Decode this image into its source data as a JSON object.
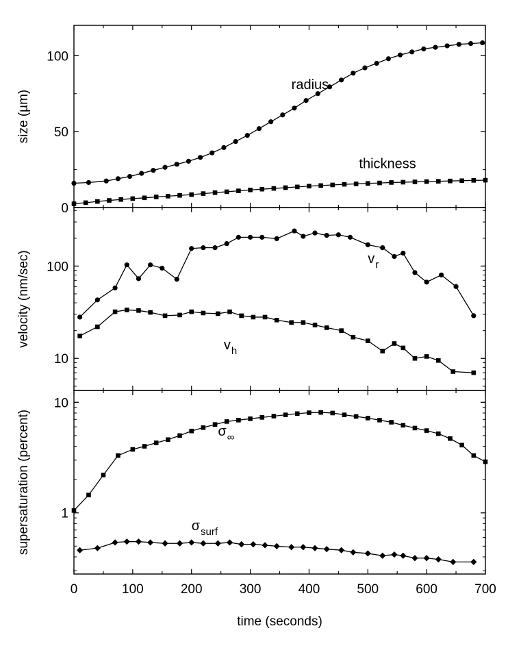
{
  "chart_data": [
    {
      "type": "line",
      "panel": "top",
      "ylabel": "size (µm)",
      "yscale": "linear",
      "ylim": [
        0,
        120
      ],
      "yticks": [
        0,
        50,
        100
      ],
      "ytick_labels": [
        "0",
        "50",
        "100"
      ],
      "series": [
        {
          "name": "radius",
          "marker": "circle",
          "x": [
            0,
            25,
            55,
            75,
            95,
            115,
            135,
            155,
            175,
            195,
            215,
            235,
            255,
            275,
            295,
            315,
            335,
            355,
            375,
            395,
            415,
            435,
            455,
            475,
            495,
            515,
            535,
            555,
            575,
            595,
            615,
            635,
            655,
            675,
            695
          ],
          "values": [
            16,
            16.5,
            17.5,
            19,
            20.5,
            22.5,
            24.5,
            26.5,
            28.5,
            30.5,
            33,
            36,
            39.5,
            43.5,
            47.5,
            52,
            56.5,
            61,
            65.5,
            70.5,
            75,
            79.5,
            84,
            88.5,
            92,
            95,
            98,
            100.5,
            102.5,
            104.5,
            105.5,
            106.5,
            107.5,
            108,
            108.5
          ]
        },
        {
          "name": "thickness",
          "marker": "square",
          "x": [
            0,
            20,
            40,
            60,
            80,
            100,
            120,
            140,
            160,
            180,
            200,
            220,
            240,
            260,
            280,
            300,
            320,
            340,
            360,
            380,
            400,
            420,
            440,
            460,
            480,
            500,
            520,
            540,
            560,
            580,
            600,
            620,
            640,
            660,
            680,
            700
          ],
          "values": [
            2.5,
            3.2,
            4,
            4.7,
            5.3,
            5.9,
            6.4,
            7,
            7.5,
            8,
            8.5,
            9.2,
            9.8,
            10.4,
            11,
            11.6,
            12.1,
            12.6,
            13.1,
            13.6,
            14.1,
            14.5,
            14.9,
            15.3,
            15.6,
            15.9,
            16.2,
            16.5,
            16.7,
            16.9,
            17.1,
            17.3,
            17.5,
            17.7,
            17.9,
            18
          ]
        }
      ],
      "annotations": [
        {
          "text": "radius",
          "x": 370,
          "y": 78
        },
        {
          "text": "thickness",
          "x": 485,
          "y": 26
        }
      ]
    },
    {
      "type": "line",
      "panel": "middle",
      "ylabel": "velocity (nm/sec)",
      "yscale": "log",
      "ylim": [
        4.5,
        430
      ],
      "yticks": [
        10,
        100
      ],
      "ytick_labels": [
        "10",
        "100"
      ],
      "series": [
        {
          "name": "v_r",
          "marker": "circle",
          "x": [
            10,
            40,
            70,
            90,
            110,
            130,
            150,
            175,
            200,
            220,
            240,
            260,
            280,
            300,
            320,
            345,
            375,
            390,
            410,
            430,
            450,
            470,
            500,
            525,
            545,
            560,
            580,
            600,
            625,
            650,
            680
          ],
          "values": [
            28,
            43,
            58,
            103,
            73,
            103,
            95,
            72,
            155,
            158,
            158,
            175,
            205,
            205,
            205,
            198,
            240,
            210,
            228,
            215,
            218,
            205,
            170,
            158,
            127,
            138,
            85,
            67,
            80,
            60,
            29
          ]
        },
        {
          "name": "v_h",
          "marker": "square",
          "x": [
            10,
            40,
            70,
            90,
            110,
            130,
            155,
            180,
            200,
            220,
            245,
            265,
            285,
            305,
            325,
            345,
            370,
            390,
            410,
            430,
            455,
            475,
            500,
            525,
            545,
            560,
            580,
            600,
            620,
            645,
            680
          ],
          "values": [
            17.5,
            22,
            32,
            33.5,
            33,
            31.5,
            29,
            29.5,
            32,
            31,
            30.5,
            32,
            29,
            28,
            28,
            26,
            24.5,
            24.5,
            23,
            21.5,
            20,
            17,
            15.5,
            12,
            14.5,
            13,
            10,
            10.5,
            9.5,
            7.2,
            7
          ]
        }
      ],
      "annotations": [
        {
          "text": "v",
          "sub": "r",
          "x": 500,
          "y": 108
        },
        {
          "text": "v",
          "sub": "h",
          "x": 255,
          "y": 12.5
        }
      ]
    },
    {
      "type": "line",
      "panel": "bottom",
      "ylabel": "supersaturation (percent)",
      "yscale": "log",
      "ylim": [
        0.28,
        12.8
      ],
      "yticks": [
        1,
        10
      ],
      "ytick_labels": [
        "1",
        "10"
      ],
      "xlabel": "time (seconds)",
      "xlim": [
        0,
        700
      ],
      "xticks": [
        0,
        100,
        200,
        300,
        400,
        500,
        600,
        700
      ],
      "xtick_labels": [
        "0",
        "100",
        "200",
        "300",
        "400",
        "500",
        "600",
        "700"
      ],
      "series": [
        {
          "name": "sigma_inf",
          "marker": "square",
          "x": [
            0,
            25,
            50,
            75,
            100,
            120,
            140,
            160,
            180,
            200,
            220,
            240,
            260,
            280,
            300,
            320,
            340,
            360,
            380,
            400,
            420,
            440,
            460,
            480,
            500,
            520,
            540,
            560,
            580,
            600,
            620,
            640,
            660,
            680,
            700
          ],
          "values": [
            1.05,
            1.45,
            2.2,
            3.3,
            3.75,
            4.0,
            4.3,
            4.6,
            5.0,
            5.5,
            5.9,
            6.3,
            6.7,
            6.9,
            7.1,
            7.3,
            7.5,
            7.7,
            7.9,
            8.05,
            8.1,
            8.0,
            7.7,
            7.45,
            7.2,
            6.9,
            6.6,
            6.2,
            5.85,
            5.55,
            5.2,
            4.7,
            4.1,
            3.3,
            2.9
          ]
        },
        {
          "name": "sigma_surf",
          "marker": "diamond",
          "x": [
            10,
            40,
            70,
            90,
            110,
            130,
            155,
            180,
            200,
            220,
            245,
            265,
            285,
            305,
            325,
            345,
            370,
            390,
            410,
            430,
            455,
            475,
            500,
            525,
            545,
            560,
            580,
            600,
            620,
            645,
            680
          ],
          "values": [
            0.46,
            0.48,
            0.54,
            0.55,
            0.55,
            0.54,
            0.53,
            0.53,
            0.54,
            0.53,
            0.53,
            0.54,
            0.52,
            0.52,
            0.51,
            0.5,
            0.49,
            0.49,
            0.48,
            0.47,
            0.46,
            0.44,
            0.43,
            0.41,
            0.42,
            0.41,
            0.39,
            0.39,
            0.38,
            0.36,
            0.36
          ]
        }
      ],
      "annotations": [
        {
          "text": "σ",
          "sub": "∞",
          "x": 245,
          "y": 5.0
        },
        {
          "text": "σ",
          "sub": "surf",
          "x": 200,
          "y": 0.7
        }
      ]
    }
  ]
}
